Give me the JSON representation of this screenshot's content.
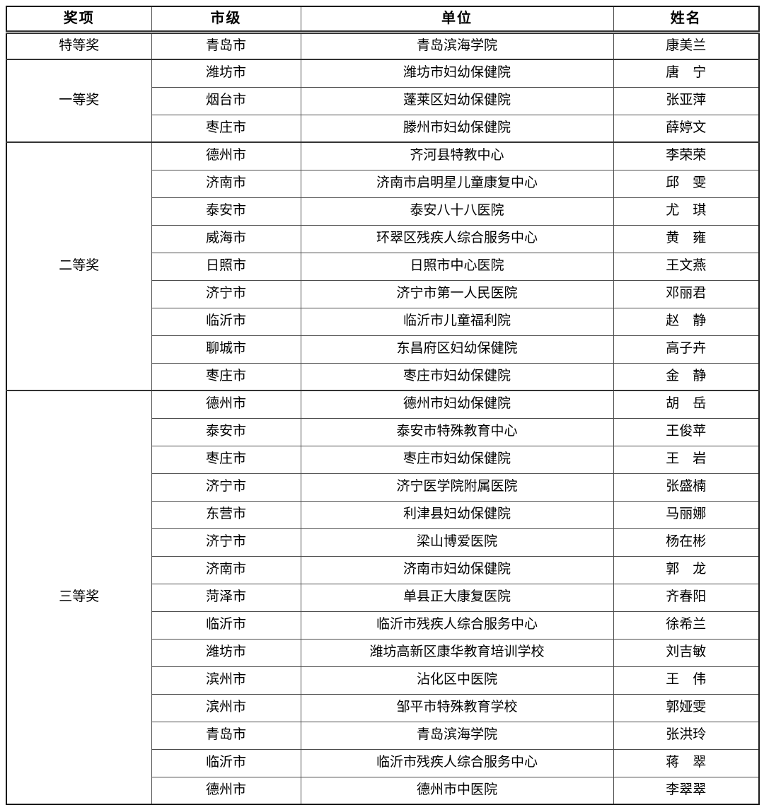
{
  "table": {
    "headers": [
      "奖项",
      "市级",
      "单位",
      "姓名"
    ],
    "groups": [
      {
        "award": "特等奖",
        "rows": [
          {
            "city": "青岛市",
            "unit": "青岛滨海学院",
            "name": "康美兰"
          }
        ]
      },
      {
        "award": "一等奖",
        "rows": [
          {
            "city": "潍坊市",
            "unit": "潍坊市妇幼保健院",
            "name": "唐　宁"
          },
          {
            "city": "烟台市",
            "unit": "蓬莱区妇幼保健院",
            "name": "张亚萍"
          },
          {
            "city": "枣庄市",
            "unit": "滕州市妇幼保健院",
            "name": "薛婷文"
          }
        ]
      },
      {
        "award": "二等奖",
        "rows": [
          {
            "city": "德州市",
            "unit": "齐河县特教中心",
            "name": "李荣荣"
          },
          {
            "city": "济南市",
            "unit": "济南市启明星儿童康复中心",
            "name": "邱　雯"
          },
          {
            "city": "泰安市",
            "unit": "泰安八十八医院",
            "name": "尤　琪"
          },
          {
            "city": "威海市",
            "unit": "环翠区残疾人综合服务中心",
            "name": "黄　雍"
          },
          {
            "city": "日照市",
            "unit": "日照市中心医院",
            "name": "王文燕"
          },
          {
            "city": "济宁市",
            "unit": "济宁市第一人民医院",
            "name": "邓丽君"
          },
          {
            "city": "临沂市",
            "unit": "临沂市儿童福利院",
            "name": "赵　静"
          },
          {
            "city": "聊城市",
            "unit": "东昌府区妇幼保健院",
            "name": "高子卉"
          },
          {
            "city": "枣庄市",
            "unit": "枣庄市妇幼保健院",
            "name": "金　静"
          }
        ]
      },
      {
        "award": "三等奖",
        "rows": [
          {
            "city": "德州市",
            "unit": "德州市妇幼保健院",
            "name": "胡　岳"
          },
          {
            "city": "泰安市",
            "unit": "泰安市特殊教育中心",
            "name": "王俊苹"
          },
          {
            "city": "枣庄市",
            "unit": "枣庄市妇幼保健院",
            "name": "王　岩"
          },
          {
            "city": "济宁市",
            "unit": "济宁医学院附属医院",
            "name": "张盛楠"
          },
          {
            "city": "东营市",
            "unit": "利津县妇幼保健院",
            "name": "马丽娜"
          },
          {
            "city": "济宁市",
            "unit": "梁山博爱医院",
            "name": "杨在彬"
          },
          {
            "city": "济南市",
            "unit": "济南市妇幼保健院",
            "name": "郭　龙"
          },
          {
            "city": "菏泽市",
            "unit": "单县正大康复医院",
            "name": "齐春阳"
          },
          {
            "city": "临沂市",
            "unit": "临沂市残疾人综合服务中心",
            "name": "徐希兰"
          },
          {
            "city": "潍坊市",
            "unit": "潍坊高新区康华教育培训学校",
            "name": "刘吉敏"
          },
          {
            "city": "滨州市",
            "unit": "沾化区中医院",
            "name": "王　伟"
          },
          {
            "city": "滨州市",
            "unit": "邹平市特殊教育学校",
            "name": "郭娅雯"
          },
          {
            "city": "青岛市",
            "unit": "青岛滨海学院",
            "name": "张洪玲"
          },
          {
            "city": "临沂市",
            "unit": "临沂市残疾人综合服务中心",
            "name": "蒋　翠"
          },
          {
            "city": "德州市",
            "unit": "德州市中医院",
            "name": "李翠翠"
          }
        ]
      }
    ],
    "colors": {
      "background": "#ffffff",
      "text": "#000000",
      "border_outer": "#1a1a1a",
      "border_inner": "#4d4d4d"
    }
  }
}
